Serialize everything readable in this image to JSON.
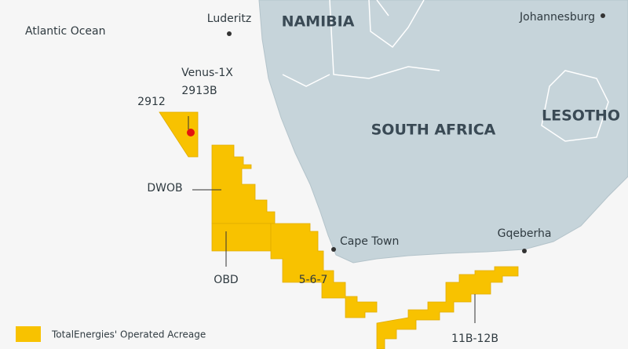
{
  "map": {
    "ocean_label": "Atlantic Ocean",
    "countries": [
      "NAMIBIA",
      "SOUTH AFRICA",
      "LESOTHO"
    ],
    "cities": [
      "Luderitz",
      "Johannesburg",
      "Cape Town",
      "Gqeberha"
    ],
    "well": "Venus-1X",
    "blocks": [
      "2913B",
      "2912",
      "DWOB",
      "OBD",
      "5-6-7",
      "11B-12B"
    ],
    "legend": "TotalEnergies' Operated Acreage"
  }
}
